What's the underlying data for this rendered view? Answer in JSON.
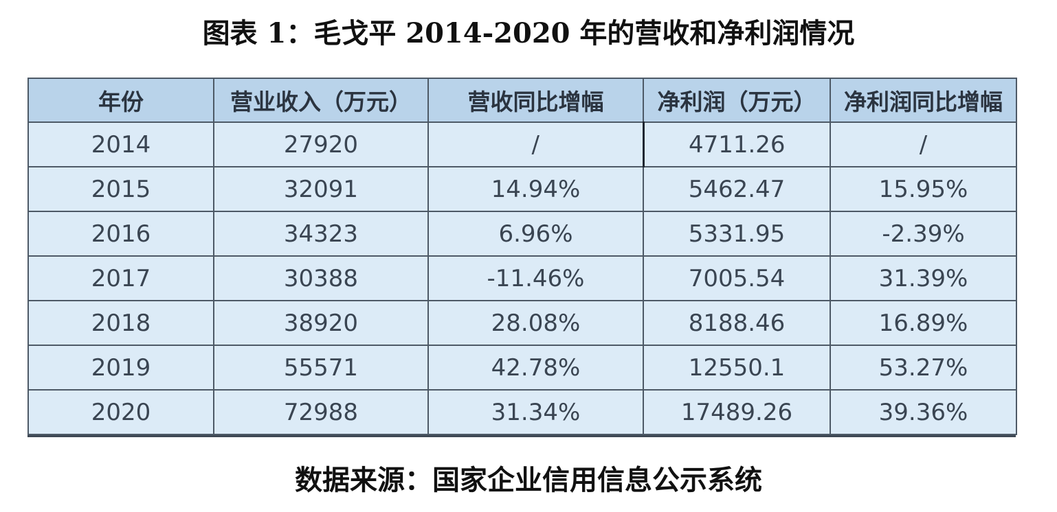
{
  "title": "图表 1：毛戈平 2014-2020 年的营收和净利润情况",
  "source": "数据来源：国家企业信用信息公示系统",
  "table": {
    "headers": [
      "年份",
      "营业收入（万元）",
      "营收同比增幅",
      "净利润（万元）",
      "净利润同比增幅"
    ],
    "rows": [
      [
        "2014",
        "27920",
        "/",
        "4711.26",
        "/"
      ],
      [
        "2015",
        "32091",
        "14.94%",
        "5462.47",
        "15.95%"
      ],
      [
        "2016",
        "34323",
        "6.96%",
        "5331.95",
        "-2.39%"
      ],
      [
        "2017",
        "30388",
        "-11.46%",
        "7005.54",
        "31.39%"
      ],
      [
        "2018",
        "38920",
        "28.08%",
        "8188.46",
        "16.89%"
      ],
      [
        "2019",
        "55571",
        "42.78%",
        "12550.1",
        "53.27%"
      ],
      [
        "2020",
        "72988",
        "31.34%",
        "17489.26",
        "39.36%"
      ]
    ]
  }
}
